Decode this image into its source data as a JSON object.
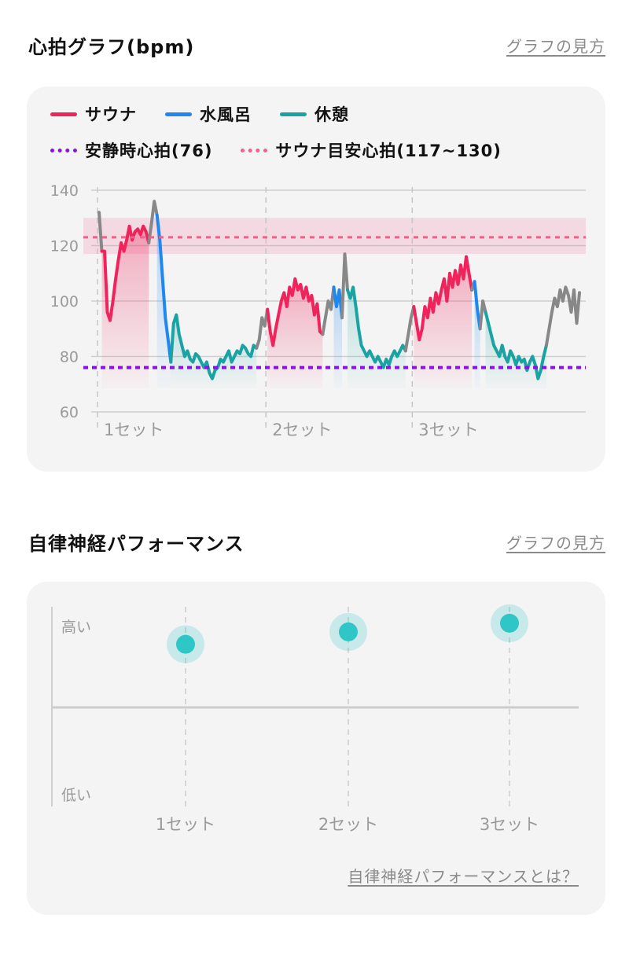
{
  "hr_section": {
    "title": "心拍グラフ(bpm)",
    "help_link": "グラフの見方"
  },
  "ans_section": {
    "title": "自律神経パフォーマンス",
    "help_link": "グラフの見方",
    "footer_link": "自律神経パフォーマンスとは？"
  },
  "legend": {
    "sauna": "サウナ",
    "cold_bath": "水風呂",
    "rest": "休憩",
    "resting_hr": "安静時心拍(76)",
    "sauna_target": "サウナ目安心拍(117~130)"
  },
  "colors": {
    "sauna": "#f0245c",
    "cold_bath": "#1e88f0",
    "rest": "#1aa3a3",
    "other": "#888888",
    "resting_hr": "#8a12e6",
    "sauna_target": "#f0608a",
    "ans_dot": "#2ec6c6"
  },
  "chart_data": [
    {
      "type": "line",
      "title": "心拍グラフ(bpm)",
      "ylabel": "bpm",
      "ylim": [
        60,
        140
      ],
      "yticks": [
        60,
        80,
        100,
        120,
        140
      ],
      "resting_hr": 76,
      "target_range": [
        117,
        130
      ],
      "target_line": 123,
      "set_labels": [
        "1セット",
        "2セット",
        "3セット"
      ],
      "segments": [
        {
          "phase": "other",
          "values": [
            132,
            118
          ]
        },
        {
          "phase": "sauna",
          "values": [
            128,
            118,
            96,
            93,
            100,
            108,
            115,
            121,
            118,
            122,
            127,
            122,
            125,
            126,
            124,
            127,
            125,
            121
          ]
        },
        {
          "phase": "other",
          "values": [
            121,
            128,
            136,
            131
          ]
        },
        {
          "phase": "cold_bath",
          "values": [
            131,
            122,
            108,
            94,
            86,
            78
          ]
        },
        {
          "phase": "rest",
          "values": [
            84,
            92,
            95,
            88,
            84,
            80,
            82,
            79,
            78,
            81,
            80,
            78,
            76,
            78,
            74,
            72,
            75,
            76,
            79,
            78,
            80,
            82,
            78,
            80,
            82,
            81,
            84,
            83,
            81,
            80,
            84,
            83
          ]
        },
        {
          "phase": "other",
          "values": [
            83,
            86,
            94,
            91,
            97
          ]
        },
        {
          "phase": "sauna",
          "values": [
            95,
            89,
            84,
            90,
            95,
            100,
            103,
            98,
            105,
            102,
            108,
            104,
            106,
            101,
            105,
            100,
            102,
            95,
            99,
            89,
            88
          ]
        },
        {
          "phase": "other",
          "values": [
            88,
            94,
            100,
            97,
            105
          ]
        },
        {
          "phase": "cold_bath",
          "values": [
            105,
            98,
            104,
            94
          ]
        },
        {
          "phase": "other",
          "values": [
            94,
            117,
            104
          ]
        },
        {
          "phase": "rest",
          "values": [
            104,
            101,
            105,
            98,
            90,
            84,
            82,
            80,
            82,
            80,
            78,
            80,
            78,
            76,
            79,
            77,
            80,
            82,
            80,
            82,
            84,
            82
          ]
        },
        {
          "phase": "other",
          "values": [
            82,
            88,
            94,
            98
          ]
        },
        {
          "phase": "sauna",
          "values": [
            98,
            92,
            86,
            90,
            98,
            94,
            101,
            96,
            103,
            99,
            104,
            108,
            100,
            110,
            105,
            111,
            106,
            113,
            108,
            116,
            110,
            104
          ]
        },
        {
          "phase": "other",
          "values": [
            104,
            107
          ]
        },
        {
          "phase": "cold_bath",
          "values": [
            107,
            97,
            90
          ]
        },
        {
          "phase": "other",
          "values": [
            90,
            100,
            96
          ]
        },
        {
          "phase": "rest",
          "values": [
            96,
            92,
            88,
            84,
            82,
            80,
            84,
            80,
            78,
            82,
            80,
            77,
            80,
            78,
            79,
            75,
            78,
            80,
            77,
            72,
            75,
            80,
            84
          ]
        },
        {
          "phase": "other",
          "values": [
            84,
            90,
            96,
            101,
            98,
            104,
            100,
            105,
            102,
            96,
            104,
            92,
            103
          ]
        }
      ]
    },
    {
      "type": "scatter",
      "title": "自律神経パフォーマンス",
      "ylabel_high": "高い",
      "ylabel_low": "低い",
      "categories": [
        "1セット",
        "2セット",
        "3セット"
      ],
      "values": [
        0.51,
        0.61,
        0.68
      ],
      "ylim": [
        -0.65,
        0.8
      ]
    }
  ]
}
